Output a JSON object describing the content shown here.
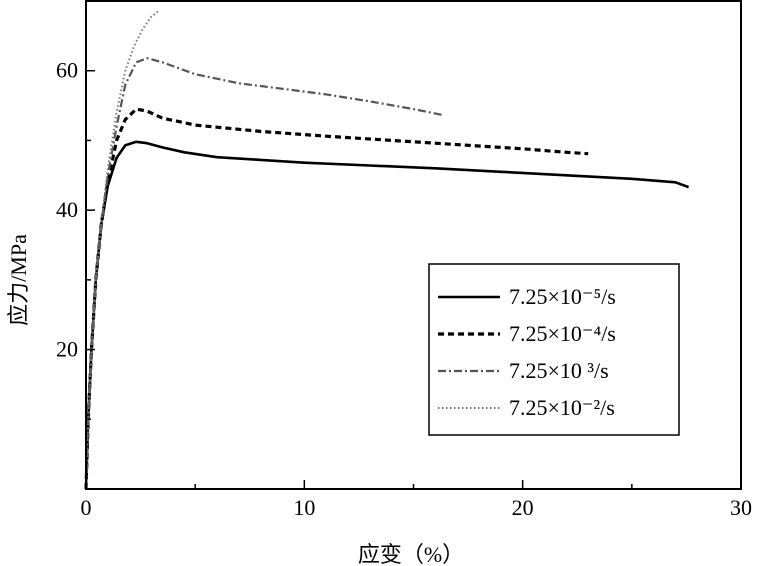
{
  "chart_data": {
    "type": "line",
    "title": "",
    "xlabel": "应变（%）",
    "ylabel": "应力/MPa",
    "xlim": [
      0,
      30
    ],
    "ylim": [
      0,
      70
    ],
    "xticks": [
      0,
      10,
      20,
      30
    ],
    "yticks": [
      20,
      40,
      60
    ],
    "grid": false,
    "legend_position": "lower-right",
    "series": [
      {
        "name": "7.25×10⁻⁵/s",
        "style": "solid",
        "color": "#000000",
        "points": [
          [
            0,
            0
          ],
          [
            0.1,
            10
          ],
          [
            0.25,
            20
          ],
          [
            0.45,
            30
          ],
          [
            0.7,
            38
          ],
          [
            1.0,
            43.5
          ],
          [
            1.4,
            47.5
          ],
          [
            1.8,
            49.3
          ],
          [
            2.3,
            49.8
          ],
          [
            2.8,
            49.6
          ],
          [
            3.5,
            49.0
          ],
          [
            4.5,
            48.3
          ],
          [
            6,
            47.6
          ],
          [
            8,
            47.2
          ],
          [
            10,
            46.8
          ],
          [
            13,
            46.4
          ],
          [
            16,
            46.0
          ],
          [
            19,
            45.5
          ],
          [
            22,
            45.0
          ],
          [
            25,
            44.5
          ],
          [
            27,
            44.0
          ],
          [
            27.6,
            43.3
          ]
        ]
      },
      {
        "name": "7.25×10⁻⁴/s",
        "style": "dashed",
        "color": "#000000",
        "points": [
          [
            0,
            0
          ],
          [
            0.1,
            10
          ],
          [
            0.25,
            20
          ],
          [
            0.45,
            30
          ],
          [
            0.7,
            38
          ],
          [
            1.0,
            44
          ],
          [
            1.4,
            50
          ],
          [
            1.8,
            53
          ],
          [
            2.3,
            54.5
          ],
          [
            2.8,
            54.2
          ],
          [
            3.5,
            53.2
          ],
          [
            5,
            52.2
          ],
          [
            8,
            51.3
          ],
          [
            11,
            50.6
          ],
          [
            14,
            50.0
          ],
          [
            17,
            49.4
          ],
          [
            20,
            48.8
          ],
          [
            22,
            48.3
          ],
          [
            23,
            48.1
          ]
        ]
      },
      {
        "name": "7.25×10 ³/s",
        "style": "dashdot",
        "color": "#555555",
        "points": [
          [
            0,
            0
          ],
          [
            0.1,
            10
          ],
          [
            0.25,
            20
          ],
          [
            0.45,
            30
          ],
          [
            0.7,
            38
          ],
          [
            1.0,
            45
          ],
          [
            1.4,
            52
          ],
          [
            1.8,
            58
          ],
          [
            2.3,
            61.2
          ],
          [
            2.8,
            61.8
          ],
          [
            3.5,
            61.2
          ],
          [
            5,
            59.5
          ],
          [
            7,
            58.2
          ],
          [
            9,
            57.4
          ],
          [
            11,
            56.6
          ],
          [
            13,
            55.6
          ],
          [
            15,
            54.5
          ],
          [
            16.4,
            53.6
          ]
        ]
      },
      {
        "name": "7.25×10⁻²/s",
        "style": "dotted",
        "color": "#777777",
        "points": [
          [
            0,
            0
          ],
          [
            0.1,
            10
          ],
          [
            0.25,
            20
          ],
          [
            0.45,
            30
          ],
          [
            0.7,
            38
          ],
          [
            1.0,
            46
          ],
          [
            1.4,
            54
          ],
          [
            1.8,
            60
          ],
          [
            2.2,
            63.5
          ],
          [
            2.6,
            66
          ],
          [
            3.0,
            67.8
          ],
          [
            3.3,
            68.5
          ]
        ]
      }
    ]
  }
}
